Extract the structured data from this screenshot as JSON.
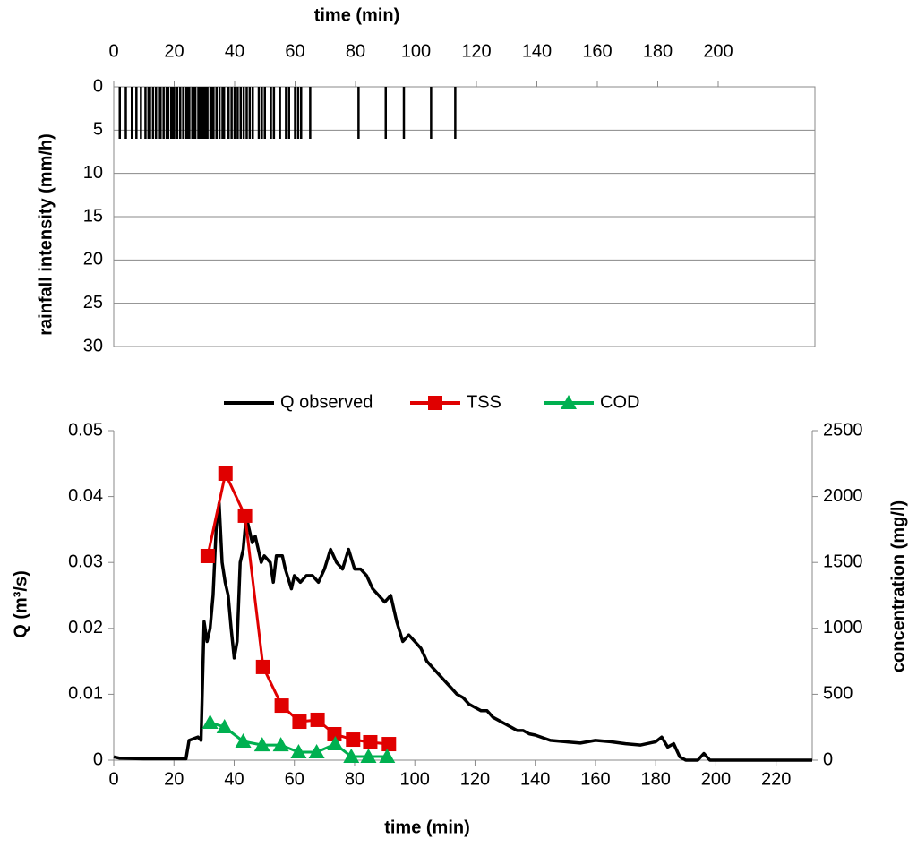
{
  "chart_data": [
    {
      "type": "bar",
      "xlabel": "time (min)",
      "ylabel": "rainfall intensity (mm/h)",
      "x": [
        2,
        4,
        6,
        7.5,
        9,
        10.5,
        11.5,
        12,
        13,
        14,
        15,
        15.5,
        16.5,
        17.5,
        18,
        19,
        19.5,
        20,
        21,
        22,
        23,
        24,
        24.5,
        25,
        26,
        26.5,
        27,
        28,
        28.5,
        29,
        29.5,
        30,
        30.5,
        31,
        32,
        32.5,
        33,
        34,
        35,
        36,
        36.5,
        38,
        39,
        40,
        41,
        42,
        43,
        44,
        45,
        46,
        48,
        49,
        50,
        52,
        53,
        55,
        57,
        58,
        60,
        61,
        62,
        65,
        81,
        90,
        96,
        105,
        113
      ],
      "values": [
        6,
        6,
        6,
        6,
        6,
        6,
        6,
        6,
        6,
        6,
        6,
        6,
        6,
        6,
        6,
        6,
        6,
        6,
        6,
        6,
        6,
        6,
        6,
        6,
        6,
        6,
        6,
        6,
        6,
        6,
        6,
        6,
        6,
        6,
        6,
        6,
        6,
        6,
        6,
        6,
        6,
        6,
        6,
        6,
        6,
        6,
        6,
        6,
        6,
        6,
        6,
        6,
        6,
        6,
        6,
        6,
        6,
        6,
        6,
        6,
        6,
        6,
        6,
        6,
        6,
        6,
        6
      ],
      "color": "#000000",
      "xlim": [
        0,
        232
      ],
      "xticks": [
        0,
        20,
        40,
        60,
        80,
        100,
        120,
        140,
        160,
        180,
        200
      ],
      "ylim": [
        0,
        30
      ],
      "yticks": [
        0,
        5,
        10,
        15,
        20,
        25,
        30
      ],
      "y_inverted": true,
      "grid": true
    },
    {
      "type": "line",
      "xlabel": "time (min)",
      "ylabel": "Q (m³/s)",
      "y2label": "concentration (mg/l)",
      "xlim": [
        0,
        232
      ],
      "xticks": [
        0,
        20,
        40,
        60,
        80,
        100,
        120,
        140,
        160,
        180,
        200,
        220
      ],
      "ylim": [
        0,
        0.05
      ],
      "yticks": [
        0,
        0.01,
        0.02,
        0.03,
        0.04,
        0.05
      ],
      "y2lim": [
        0,
        2500
      ],
      "y2ticks": [
        0,
        500,
        1000,
        1500,
        2000,
        2500
      ],
      "legend": "top",
      "grid": false,
      "series": [
        {
          "name": "Q observed",
          "color": "#000000",
          "marker": "none",
          "x": [
            0,
            2,
            10,
            24,
            25,
            28,
            29,
            30,
            31,
            32,
            33,
            34,
            35,
            36,
            37,
            38,
            39,
            40,
            41,
            42,
            43,
            44,
            45,
            46,
            47,
            48,
            49,
            50,
            52,
            53,
            54,
            56,
            57,
            59,
            60,
            62,
            64,
            66,
            68,
            70,
            72,
            74,
            76,
            78,
            80,
            82,
            84,
            86,
            88,
            90,
            92,
            94,
            96,
            98,
            100,
            102,
            104,
            106,
            108,
            110,
            112,
            114,
            116,
            118,
            120,
            122,
            124,
            126,
            128,
            130,
            132,
            134,
            136,
            138,
            140,
            145,
            150,
            155,
            160,
            165,
            170,
            175,
            180,
            182,
            184,
            186,
            188,
            190,
            194,
            196,
            198,
            232
          ],
          "values": [
            0.0005,
            0.0003,
            0.0002,
            0.0002,
            0.003,
            0.0035,
            0.003,
            0.021,
            0.018,
            0.02,
            0.025,
            0.035,
            0.039,
            0.03,
            0.027,
            0.025,
            0.02,
            0.0155,
            0.018,
            0.03,
            0.032,
            0.037,
            0.035,
            0.033,
            0.034,
            0.032,
            0.03,
            0.031,
            0.03,
            0.027,
            0.031,
            0.031,
            0.029,
            0.026,
            0.028,
            0.027,
            0.028,
            0.028,
            0.027,
            0.029,
            0.032,
            0.03,
            0.029,
            0.032,
            0.029,
            0.029,
            0.028,
            0.026,
            0.025,
            0.024,
            0.025,
            0.021,
            0.018,
            0.019,
            0.018,
            0.017,
            0.015,
            0.014,
            0.013,
            0.012,
            0.011,
            0.01,
            0.0095,
            0.0085,
            0.008,
            0.0075,
            0.0075,
            0.0065,
            0.006,
            0.0055,
            0.005,
            0.0045,
            0.0045,
            0.004,
            0.0038,
            0.003,
            0.0028,
            0.0026,
            0.003,
            0.0028,
            0.0025,
            0.0023,
            0.0028,
            0.0035,
            0.002,
            0.0025,
            0.0005,
            0,
            0,
            0.001,
            0,
            0
          ]
        },
        {
          "name": "TSS",
          "color": "#e00000",
          "marker": "square",
          "axis": "y2",
          "x": [
            31.2,
            37.1,
            43.6,
            49.6,
            55.8,
            61.7,
            67.7,
            73.3,
            79.5,
            85.2,
            91.4
          ],
          "values": [
            1549,
            2174,
            1855,
            707,
            414,
            292,
            306,
            197,
            156,
            136,
            122
          ]
        },
        {
          "name": "COD",
          "color": "#00b050",
          "marker": "triangle",
          "axis": "y2",
          "x": [
            32,
            36.8,
            43,
            49.3,
            55.5,
            61.4,
            67.4,
            73.6,
            78.9,
            84.6,
            90.8
          ],
          "values": [
            285,
            251,
            143,
            115,
            115,
            61,
            61,
            122,
            27,
            27,
            27
          ]
        }
      ]
    }
  ]
}
